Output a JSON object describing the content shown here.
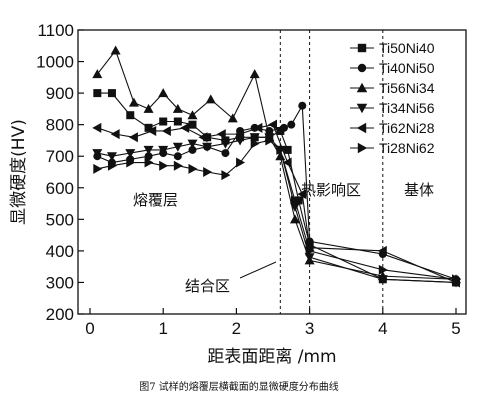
{
  "chart_data": {
    "type": "line",
    "title": "",
    "xlabel": "距表面距离 /mm",
    "ylabel": "显微硬度(HV)",
    "xlim": [
      0,
      5.2
    ],
    "ylim": [
      200,
      1100
    ],
    "xticks": [
      0,
      1,
      2,
      3,
      4,
      5
    ],
    "yticks": [
      200,
      300,
      400,
      500,
      600,
      700,
      800,
      900,
      1000,
      1100
    ],
    "grid": false,
    "legend_position": "top-right",
    "series": [
      {
        "name": "Ti50Ni40",
        "marker": "square",
        "x": [
          0.1,
          0.3,
          0.55,
          0.8,
          1.0,
          1.2,
          1.4,
          1.6,
          1.85,
          2.05,
          2.25,
          2.45,
          2.6,
          2.7,
          2.85,
          3.0,
          4.0,
          5.0
        ],
        "y": [
          900,
          900,
          830,
          790,
          810,
          810,
          800,
          760,
          750,
          760,
          760,
          760,
          780,
          720,
          560,
          420,
          310,
          300
        ]
      },
      {
        "name": "Ti40Ni50",
        "marker": "circle",
        "x": [
          0.1,
          0.3,
          0.55,
          0.8,
          1.0,
          1.2,
          1.4,
          1.6,
          1.85,
          2.05,
          2.25,
          2.45,
          2.65,
          2.75,
          2.9,
          3.0,
          4.0,
          5.0
        ],
        "y": [
          700,
          680,
          690,
          700,
          710,
          700,
          720,
          730,
          710,
          780,
          790,
          780,
          790,
          800,
          860,
          430,
          390,
          310
        ]
      },
      {
        "name": "Ti56Ni34",
        "marker": "triangle-up",
        "x": [
          0.1,
          0.35,
          0.6,
          0.8,
          1.0,
          1.2,
          1.4,
          1.65,
          1.95,
          2.25,
          2.45,
          2.6,
          2.8,
          3.0,
          4.0,
          5.0
        ],
        "y": [
          960,
          1035,
          870,
          850,
          900,
          850,
          830,
          880,
          820,
          960,
          760,
          700,
          500,
          370,
          320,
          310
        ]
      },
      {
        "name": "Ti34Ni56",
        "marker": "triangle-down",
        "x": [
          0.1,
          0.3,
          0.55,
          0.8,
          1.0,
          1.2,
          1.4,
          1.6,
          1.85,
          2.05,
          2.25,
          2.45,
          2.6,
          2.8,
          3.0,
          4.0,
          5.0
        ],
        "y": [
          710,
          700,
          710,
          720,
          720,
          730,
          740,
          730,
          740,
          750,
          760,
          760,
          720,
          540,
          380,
          310,
          300
        ]
      },
      {
        "name": "Ti62Ni28",
        "marker": "triangle-left",
        "x": [
          0.1,
          0.35,
          0.6,
          0.85,
          1.05,
          1.3,
          1.55,
          1.8,
          2.05,
          2.3,
          2.5,
          2.7,
          2.9,
          3.0,
          4.0,
          5.0
        ],
        "y": [
          790,
          770,
          760,
          780,
          780,
          790,
          760,
          770,
          770,
          790,
          800,
          680,
          580,
          410,
          400,
          300
        ]
      },
      {
        "name": "Ti28Ni62",
        "marker": "triangle-right",
        "x": [
          0.1,
          0.3,
          0.55,
          0.8,
          1.0,
          1.2,
          1.4,
          1.6,
          1.85,
          2.05,
          2.25,
          2.45,
          2.6,
          2.8,
          3.0,
          4.0,
          5.0
        ],
        "y": [
          660,
          670,
          680,
          680,
          670,
          670,
          660,
          650,
          640,
          680,
          740,
          750,
          720,
          560,
          400,
          340,
          310
        ]
      }
    ],
    "vlines": [
      2.6,
      3.0,
      4.0
    ],
    "annotations": {
      "cladding": "熔覆层",
      "bonding": "结合区",
      "haz": "热影响区",
      "substrate": "基体"
    },
    "caption": "图7 试样的熔覆层横截面的显微硬度分布曲线"
  }
}
